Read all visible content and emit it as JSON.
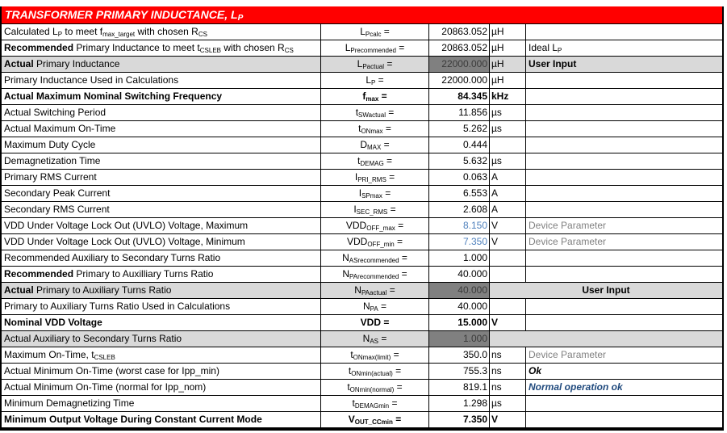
{
  "title": {
    "text": "TRANSFORMER PRIMARY INDUCTANCE, L",
    "sub": "P"
  },
  "colors": {
    "header_bg": "#ff0000",
    "input_row_bg": "#d9d9d9",
    "input_cell_bg": "#808080",
    "device_param_value": "#4f81bd",
    "status_blue": "#1f497d"
  },
  "rows": [
    {
      "label": [
        [
          "Calculated L",
          ""
        ],
        [
          "P",
          "sub"
        ],
        [
          " to meet f",
          ""
        ],
        [
          "max_target",
          "sub"
        ],
        [
          " with chosen R",
          ""
        ],
        [
          "CS",
          "sub"
        ]
      ],
      "sym": {
        "base": "L",
        "sub": "Pcalc",
        "eq": " ="
      },
      "value": "20863.052",
      "unit": "µH",
      "note": ""
    },
    {
      "label": [
        [
          "Recommended",
          "b"
        ],
        [
          " Primary Inductance to meet t",
          ""
        ],
        [
          "CSLEB",
          "sub"
        ],
        [
          " with chosen R",
          ""
        ],
        [
          "CS",
          "sub"
        ]
      ],
      "sym": {
        "base": "L",
        "sub": "Precommended",
        "eq": " ="
      },
      "value": "20863.052",
      "unit": "µH",
      "note": "Ideal L",
      "note_sub": "P"
    },
    {
      "label": [
        [
          "Actual",
          "b"
        ],
        [
          " Primary Inductance",
          ""
        ]
      ],
      "sym": {
        "base": "L",
        "sub": "Pactual",
        "eq": " ="
      },
      "value": "22000.000",
      "unit": "µH",
      "note": "User Input",
      "note_style": "bold",
      "input": true
    },
    {
      "label": [
        [
          "Primary Inductance Used in Calculations",
          ""
        ]
      ],
      "sym": {
        "base": "L",
        "sub": "P",
        "eq": " ="
      },
      "value": "22000.000",
      "unit": "µH",
      "note": ""
    },
    {
      "label": [
        [
          "Actual Maximum Nominal Switching Frequency",
          "b"
        ]
      ],
      "sym": {
        "base": "f",
        "sub": "max",
        "eq": " ="
      },
      "value": "84.345",
      "unit": "kHz",
      "note": "",
      "bold": true
    },
    {
      "label": [
        [
          "Actual Switching Period",
          ""
        ]
      ],
      "sym": {
        "base": "t",
        "sub": "SWactual",
        "eq": " ="
      },
      "value": "11.856",
      "unit": "µs",
      "note": ""
    },
    {
      "label": [
        [
          "Actual Maximum On-Time",
          ""
        ]
      ],
      "sym": {
        "base": "t",
        "sub": "ONmax",
        "eq": " ="
      },
      "value": "5.262",
      "unit": "µs",
      "note": ""
    },
    {
      "label": [
        [
          "Maximum Duty Cycle",
          ""
        ]
      ],
      "sym": {
        "base": "D",
        "sub": "MAX",
        "eq": " ="
      },
      "value": "0.444",
      "unit": "",
      "note": ""
    },
    {
      "label": [
        [
          "Demagnetization Time",
          ""
        ]
      ],
      "sym": {
        "base": "t",
        "sub": "DEMAG",
        "eq": " ="
      },
      "value": "5.632",
      "unit": "µs",
      "note": ""
    },
    {
      "label": [
        [
          "Primary RMS Current",
          ""
        ]
      ],
      "sym": {
        "base": "I",
        "sub": "PRI_RMS",
        "eq": " ="
      },
      "value": "0.063",
      "unit": "A",
      "note": ""
    },
    {
      "label": [
        [
          "Secondary Peak Current",
          ""
        ]
      ],
      "sym": {
        "base": "I",
        "sub": "SPmax",
        "eq": " ="
      },
      "value": "6.553",
      "unit": "A",
      "note": ""
    },
    {
      "label": [
        [
          "Secondary RMS Current",
          ""
        ]
      ],
      "sym": {
        "base": "I",
        "sub": "SEC_RMS",
        "eq": " ="
      },
      "value": "2.608",
      "unit": "A",
      "note": ""
    },
    {
      "label": [
        [
          "VDD Under Voltage Lock Out (UVLO) Voltage, Maximum",
          ""
        ]
      ],
      "sym": {
        "base": "VDD",
        "sub": "OFF_max",
        "eq": " ="
      },
      "value": "8.150",
      "unit": "V",
      "note": "Device Parameter",
      "note_style": "grey",
      "value_style": "blue"
    },
    {
      "label": [
        [
          "VDD Under Voltage Lock Out (UVLO) Voltage, Minimum",
          ""
        ]
      ],
      "sym": {
        "base": "VDD",
        "sub": "OFF_min",
        "eq": " ="
      },
      "value": "7.350",
      "unit": "V",
      "note": "Device Parameter",
      "note_style": "grey",
      "value_style": "blue"
    },
    {
      "label": [
        [
          "Recommended Auxiliary to Secondary Turns Ratio",
          ""
        ]
      ],
      "sym": {
        "base": "N",
        "sub": "ASrecommended",
        "eq": " ="
      },
      "value": "1.000",
      "unit": "",
      "note": ""
    },
    {
      "label": [
        [
          "Recommended",
          "b"
        ],
        [
          " Primary to Auxilliary Turns Ratio",
          ""
        ]
      ],
      "sym": {
        "base": "N",
        "sub": "PArecommended",
        "eq": " ="
      },
      "value": "40.000",
      "unit": "",
      "note": ""
    },
    {
      "label": [
        [
          "Actual",
          "b"
        ],
        [
          " Primary to Auxiliary Turns Ratio",
          ""
        ]
      ],
      "sym": {
        "base": "N",
        "sub": "PAactual",
        "eq": " ="
      },
      "value": "40.000",
      "merged_note": "User Input",
      "input": true
    },
    {
      "label": [
        [
          "Primary to Auxiliary Turns Ratio Used in Calculations",
          ""
        ]
      ],
      "sym": {
        "base": "N",
        "sub": "PA",
        "eq": " ="
      },
      "value": "40.000",
      "unit": "",
      "note": ""
    },
    {
      "label": [
        [
          "Nominal VDD Voltage",
          "b"
        ]
      ],
      "sym": {
        "base": "VDD",
        "sub": "",
        "eq": " ="
      },
      "value": "15.000",
      "unit": "V",
      "note": "",
      "bold": true
    },
    {
      "label": [
        [
          "Actual Auxiliary to Secondary Turns Ratio",
          ""
        ]
      ],
      "sym": {
        "base": "N",
        "sub": "AS",
        "eq": " ="
      },
      "value": "1.000",
      "merged_note": "",
      "input": true
    },
    {
      "label": [
        [
          "Maximum On-Time, t",
          ""
        ],
        [
          "CSLEB",
          "sub"
        ]
      ],
      "sym": {
        "base": "t",
        "sub": "ONmax(limit)",
        "eq": " ="
      },
      "value": "350.0",
      "unit": "ns",
      "note": "Device Parameter",
      "note_style": "grey"
    },
    {
      "label": [
        [
          "Actual Minimum On-Time (worst case for Ipp_min)",
          ""
        ]
      ],
      "sym": {
        "base": "t",
        "sub": "ONmin(actual)",
        "eq": " ="
      },
      "value": "755.3",
      "unit": "ns",
      "note": "Ok",
      "note_style": "ok"
    },
    {
      "label": [
        [
          "Actual Minimum On-Time (normal for Ipp_nom)",
          ""
        ]
      ],
      "sym": {
        "base": "t",
        "sub": "ONmin(normal)",
        "eq": " ="
      },
      "value": "819.1",
      "unit": "ns",
      "note": "Normal operation ok",
      "note_style": "blue"
    },
    {
      "label": [
        [
          "Minimum Demagnetizing Time",
          ""
        ]
      ],
      "sym": {
        "base": "t",
        "sub": "DEMAGmin",
        "eq": " ="
      },
      "value": "1.298",
      "unit": "µs",
      "note": ""
    },
    {
      "label": [
        [
          "Minimum Output Voltage During Constant Current Mode",
          "b"
        ]
      ],
      "sym": {
        "base": "V",
        "sub": "OUT_CCmin",
        "eq": " ="
      },
      "value": "7.350",
      "unit": "V",
      "note": "",
      "bold": true
    }
  ]
}
